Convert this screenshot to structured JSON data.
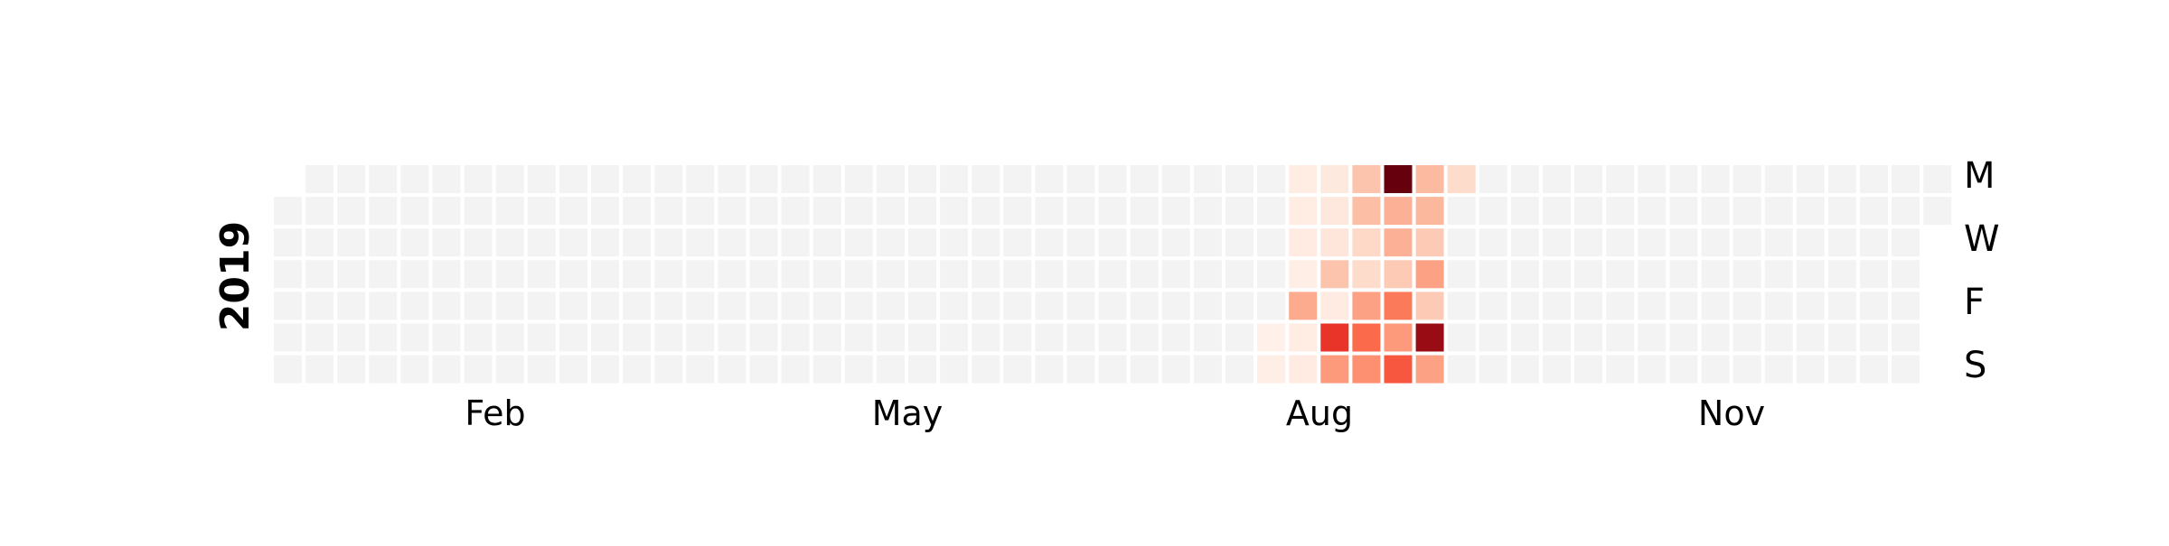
{
  "chart_data": {
    "type": "heatmap",
    "year": "2019",
    "month_labels": [
      "Feb",
      "May",
      "Aug",
      "Nov"
    ],
    "day_labels": [
      "M",
      "W",
      "F",
      "S"
    ],
    "empty_color": "#f3f3f3",
    "colormap": "Reds",
    "active_cells": [
      {
        "week": 31,
        "day": 5,
        "value": 0.03
      },
      {
        "week": 31,
        "day": 6,
        "value": 0.04
      },
      {
        "week": 32,
        "day": 0,
        "value": 0.05
      },
      {
        "week": 32,
        "day": 1,
        "value": 0.05
      },
      {
        "week": 32,
        "day": 2,
        "value": 0.06
      },
      {
        "week": 32,
        "day": 3,
        "value": 0.04
      },
      {
        "week": 32,
        "day": 4,
        "value": 0.3
      },
      {
        "week": 32,
        "day": 5,
        "value": 0.05
      },
      {
        "week": 32,
        "day": 6,
        "value": 0.06
      },
      {
        "week": 33,
        "day": 0,
        "value": 0.07
      },
      {
        "week": 33,
        "day": 1,
        "value": 0.08
      },
      {
        "week": 33,
        "day": 2,
        "value": 0.09
      },
      {
        "week": 33,
        "day": 3,
        "value": 0.22
      },
      {
        "week": 33,
        "day": 4,
        "value": 0.06
      },
      {
        "week": 33,
        "day": 5,
        "value": 0.65
      },
      {
        "week": 33,
        "day": 6,
        "value": 0.35
      },
      {
        "week": 34,
        "day": 0,
        "value": 0.22
      },
      {
        "week": 34,
        "day": 1,
        "value": 0.24
      },
      {
        "week": 34,
        "day": 2,
        "value": 0.15
      },
      {
        "week": 34,
        "day": 3,
        "value": 0.14
      },
      {
        "week": 34,
        "day": 4,
        "value": 0.33
      },
      {
        "week": 34,
        "day": 5,
        "value": 0.5
      },
      {
        "week": 34,
        "day": 6,
        "value": 0.38
      },
      {
        "week": 35,
        "day": 0,
        "value": 1.0
      },
      {
        "week": 35,
        "day": 1,
        "value": 0.28
      },
      {
        "week": 35,
        "day": 2,
        "value": 0.28
      },
      {
        "week": 35,
        "day": 3,
        "value": 0.2
      },
      {
        "week": 35,
        "day": 4,
        "value": 0.45
      },
      {
        "week": 35,
        "day": 5,
        "value": 0.35
      },
      {
        "week": 35,
        "day": 6,
        "value": 0.55
      },
      {
        "week": 36,
        "day": 0,
        "value": 0.25
      },
      {
        "week": 36,
        "day": 1,
        "value": 0.26
      },
      {
        "week": 36,
        "day": 2,
        "value": 0.2
      },
      {
        "week": 36,
        "day": 3,
        "value": 0.33
      },
      {
        "week": 36,
        "day": 4,
        "value": 0.2
      },
      {
        "week": 36,
        "day": 5,
        "value": 0.9
      },
      {
        "week": 36,
        "day": 6,
        "value": 0.33
      },
      {
        "week": 37,
        "day": 0,
        "value": 0.14
      }
    ]
  }
}
